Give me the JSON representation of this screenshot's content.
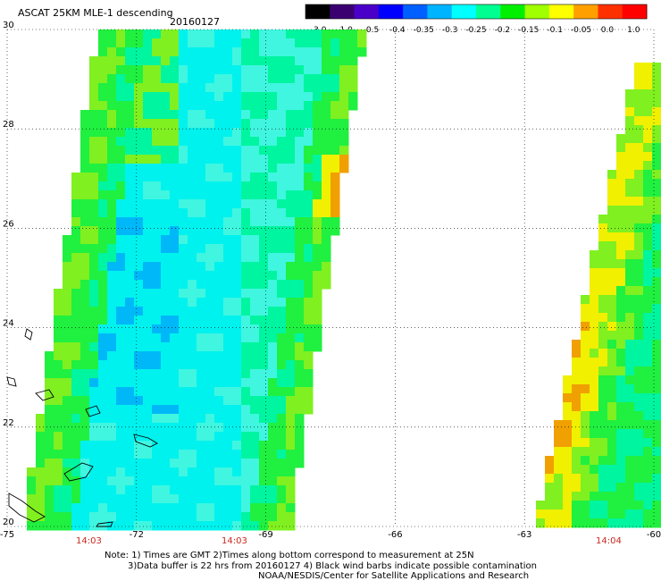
{
  "header": {
    "product": "ASCAT 25KM MLE-1 descending",
    "date": "20160127"
  },
  "colorbar": {
    "labels": [
      "-3.0",
      "-1.0",
      "-0.5",
      "-0.4",
      "-0.35",
      "-0.3",
      "-0.25",
      "-0.2",
      "-0.15",
      "-0.1",
      "-0.05",
      "0.0",
      "1.0"
    ],
    "colors": [
      "#000000",
      "#3a0070",
      "#4a00c8",
      "#0000ff",
      "#0060ff",
      "#00b4ff",
      "#00ffff",
      "#00ff90",
      "#00f000",
      "#a0ff00",
      "#ffff00",
      "#ffa000",
      "#ff3000",
      "#ff0000"
    ]
  },
  "axes": {
    "lon_labels": [
      "-75",
      "-72",
      "-69",
      "-66",
      "-63",
      "-60"
    ],
    "lat_labels": [
      "30",
      "28",
      "26",
      "24",
      "22",
      "20"
    ]
  },
  "times": [
    "14:03",
    "14:03",
    "14:04"
  ],
  "notes": {
    "line1": "Note: 1) Times are GMT 2)Times along bottom correspond to measurement at 25N",
    "line2": "3)Data buffer is 22 hrs from 20160127 4) Black wind barbs indicate possible contamination",
    "line3": "NOAA/NESDIS/Center for Satellite Applications and Research"
  },
  "map": {
    "lon_range": [
      -75,
      -60
    ],
    "lat_range": [
      20,
      30
    ],
    "colors": {
      "cyan": "#00f2ee",
      "light_cyan": "#40f6e0",
      "sea_green": "#00f5a0",
      "green": "#20f040",
      "lime": "#80f020",
      "yellow": "#f0f000",
      "orange": "#f0a000",
      "red_orange": "#ff6000",
      "blue": "#00b8f8"
    }
  }
}
